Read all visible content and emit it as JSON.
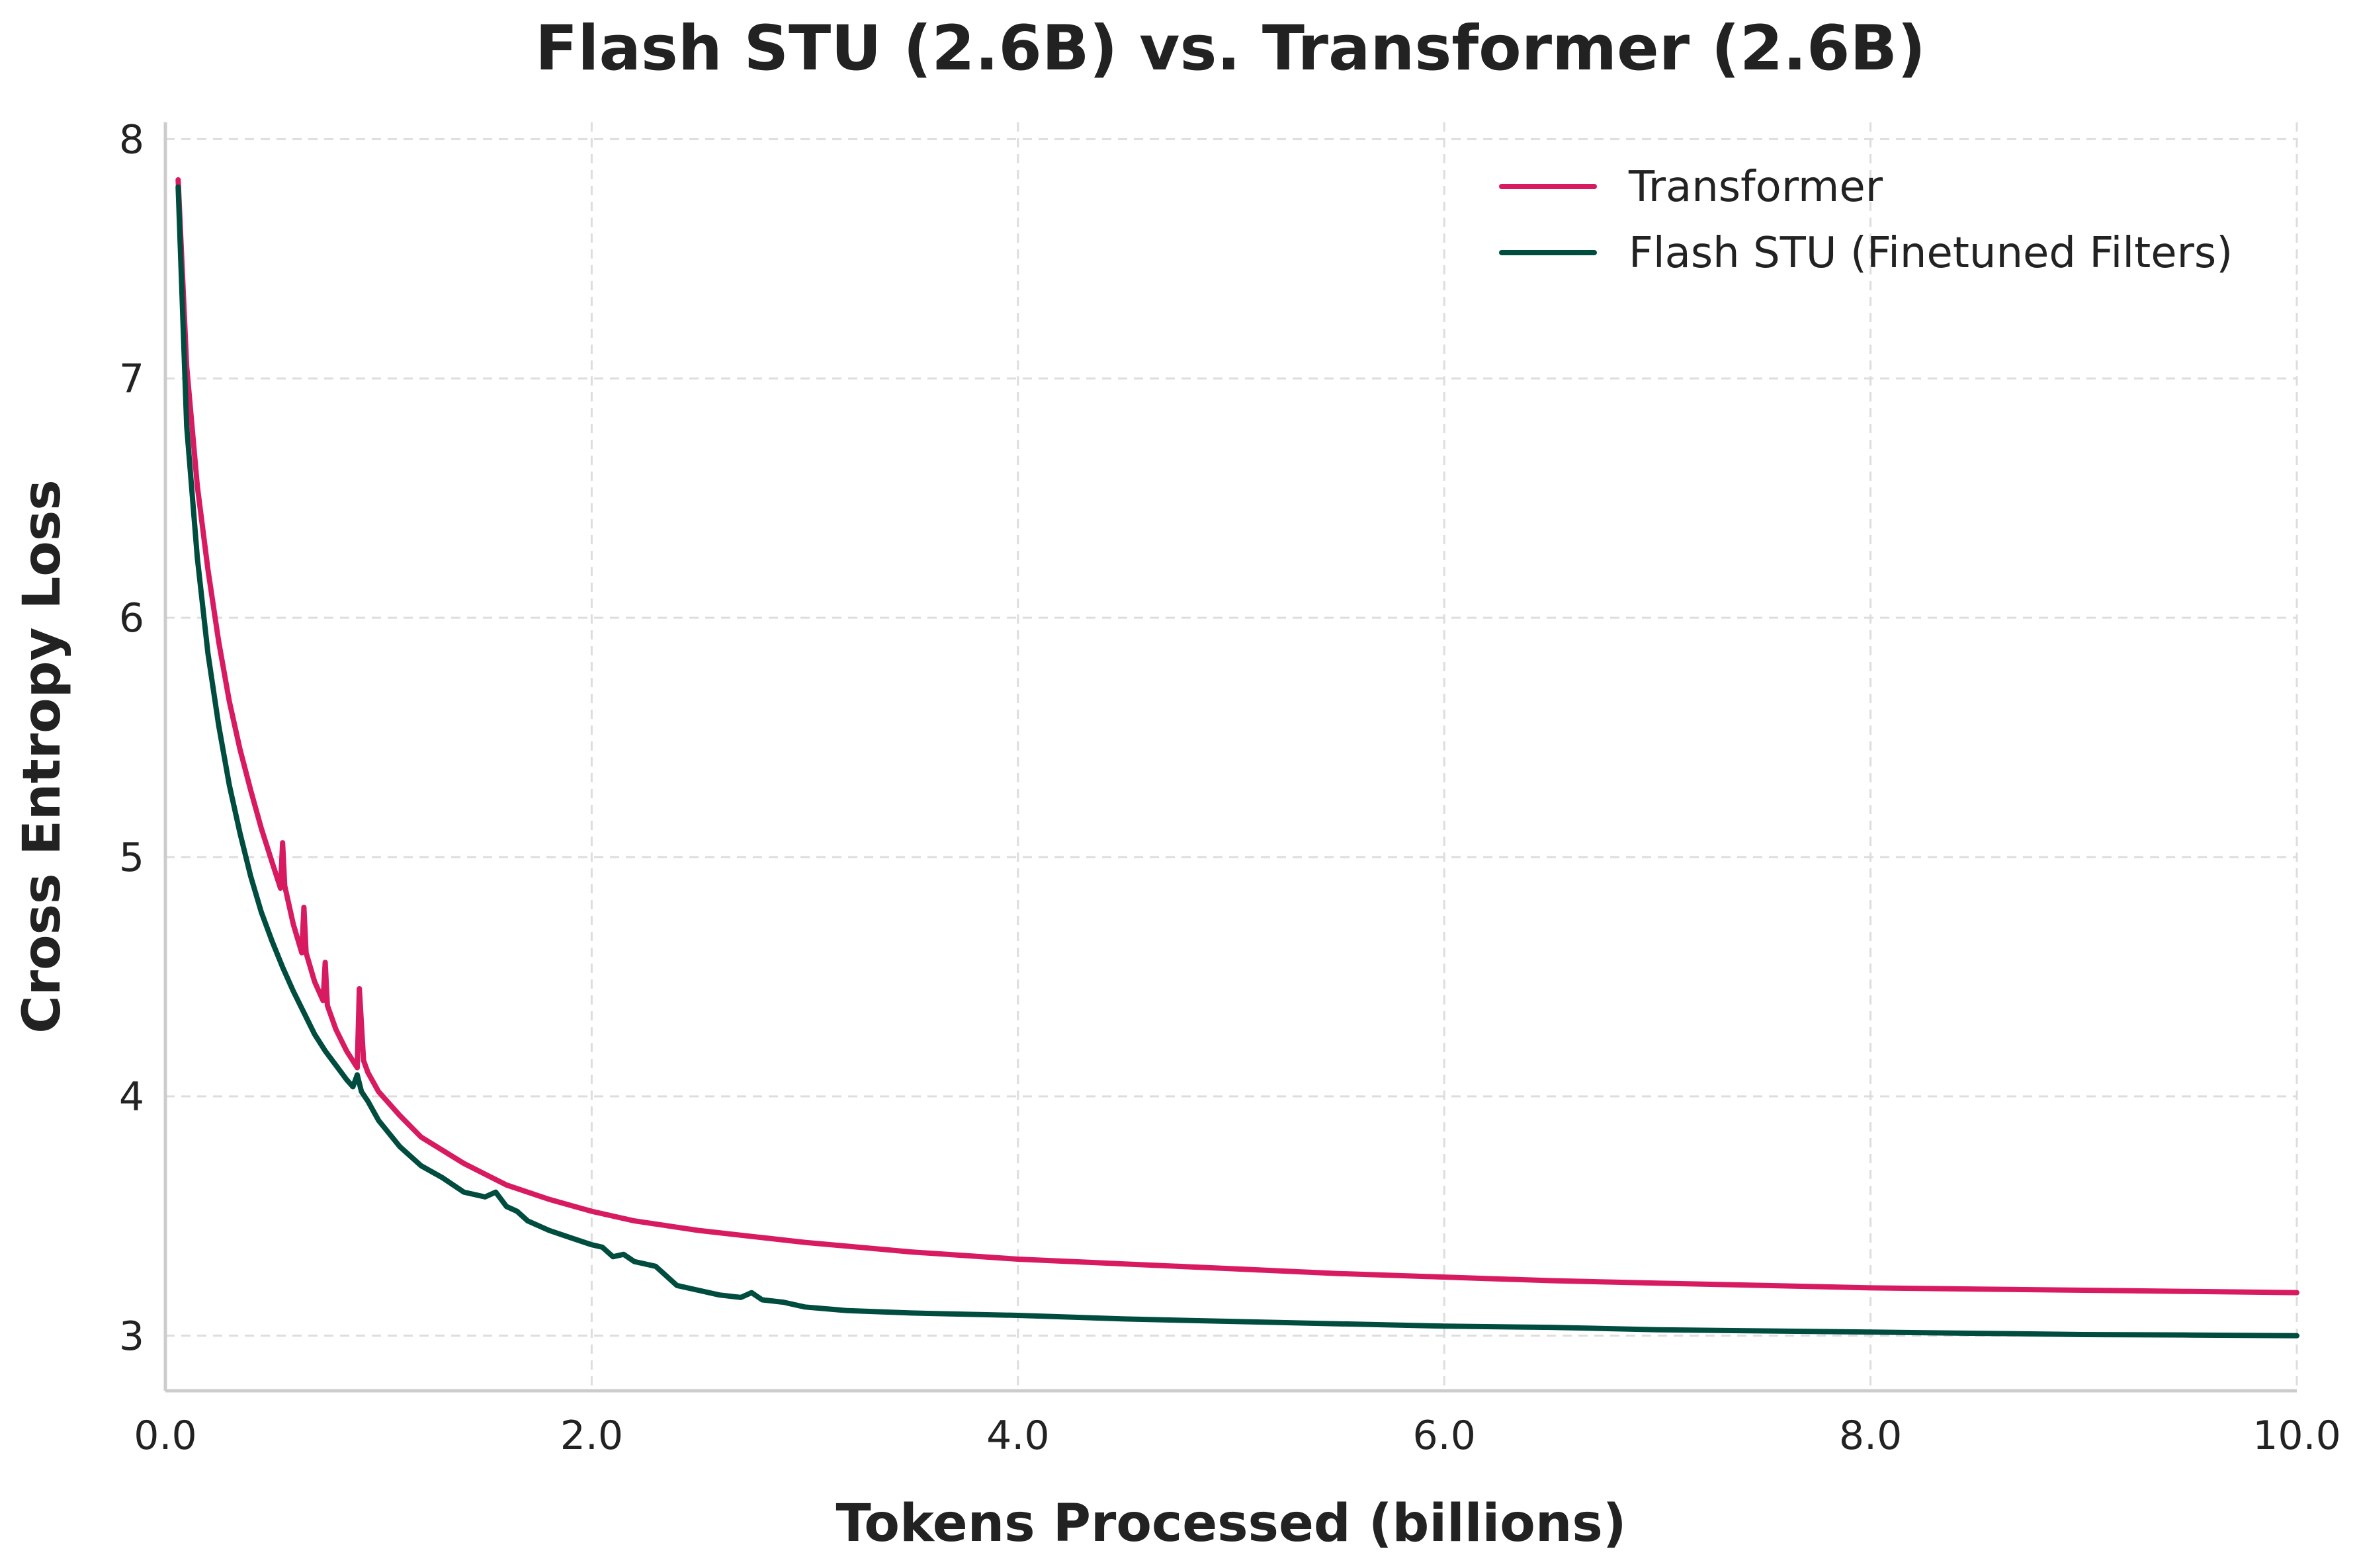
{
  "chart_data": {
    "type": "line",
    "title": "Flash STU (2.6B) vs. Transformer (2.6B)",
    "xlabel": "Tokens Processed (billions)",
    "ylabel": "Cross Entropy Loss",
    "xlim": [
      0,
      10
    ],
    "ylim": [
      2.77,
      8.07
    ],
    "xticks": [
      0,
      2,
      4,
      6,
      8,
      10
    ],
    "xtick_labels": [
      "0.0",
      "2.0",
      "4.0",
      "6.0",
      "8.0",
      "10.0"
    ],
    "yticks": [
      3,
      4,
      5,
      6,
      7,
      8
    ],
    "ytick_labels": [
      "3",
      "4",
      "5",
      "6",
      "7",
      "8"
    ],
    "grid": true,
    "legend_position": "top-right",
    "series": [
      {
        "name": "Transformer",
        "color": "#d81b60",
        "x": [
          0.06,
          0.1,
          0.15,
          0.2,
          0.25,
          0.3,
          0.35,
          0.4,
          0.45,
          0.5,
          0.54,
          0.55,
          0.56,
          0.6,
          0.64,
          0.65,
          0.66,
          0.7,
          0.74,
          0.75,
          0.76,
          0.8,
          0.85,
          0.9,
          0.91,
          0.93,
          0.95,
          1.0,
          1.1,
          1.2,
          1.4,
          1.6,
          1.8,
          2.0,
          2.2,
          2.5,
          2.8,
          3.0,
          3.5,
          4.0,
          4.5,
          5.0,
          5.5,
          6.0,
          6.5,
          7.0,
          7.5,
          8.0,
          8.5,
          9.0,
          9.5,
          10.0
        ],
        "y": [
          7.83,
          7.05,
          6.55,
          6.2,
          5.9,
          5.65,
          5.45,
          5.28,
          5.12,
          4.98,
          4.87,
          5.06,
          4.88,
          4.72,
          4.6,
          4.79,
          4.6,
          4.48,
          4.4,
          4.56,
          4.38,
          4.28,
          4.19,
          4.12,
          4.45,
          4.15,
          4.1,
          4.02,
          3.92,
          3.83,
          3.72,
          3.63,
          3.57,
          3.52,
          3.48,
          3.44,
          3.41,
          3.39,
          3.35,
          3.32,
          3.3,
          3.28,
          3.26,
          3.245,
          3.23,
          3.22,
          3.21,
          3.2,
          3.195,
          3.19,
          3.185,
          3.18
        ]
      },
      {
        "name": "Flash STU (Finetuned Filters)",
        "color": "#004d40",
        "x": [
          0.06,
          0.1,
          0.15,
          0.2,
          0.25,
          0.3,
          0.35,
          0.4,
          0.45,
          0.5,
          0.55,
          0.6,
          0.65,
          0.7,
          0.75,
          0.8,
          0.85,
          0.88,
          0.9,
          0.92,
          0.95,
          1.0,
          1.1,
          1.2,
          1.3,
          1.4,
          1.5,
          1.55,
          1.6,
          1.65,
          1.7,
          1.8,
          1.9,
          2.0,
          2.05,
          2.1,
          2.15,
          2.2,
          2.3,
          2.4,
          2.5,
          2.6,
          2.7,
          2.75,
          2.8,
          2.9,
          3.0,
          3.2,
          3.5,
          4.0,
          4.5,
          5.0,
          5.5,
          6.0,
          6.5,
          7.0,
          7.5,
          8.0,
          8.5,
          9.0,
          9.5,
          10.0
        ],
        "y": [
          7.8,
          6.8,
          6.25,
          5.85,
          5.55,
          5.3,
          5.1,
          4.92,
          4.77,
          4.65,
          4.54,
          4.44,
          4.35,
          4.26,
          4.19,
          4.13,
          4.07,
          4.04,
          4.09,
          4.02,
          3.98,
          3.9,
          3.79,
          3.71,
          3.66,
          3.6,
          3.58,
          3.6,
          3.54,
          3.52,
          3.48,
          3.44,
          3.41,
          3.38,
          3.37,
          3.33,
          3.34,
          3.31,
          3.29,
          3.21,
          3.19,
          3.17,
          3.16,
          3.18,
          3.15,
          3.14,
          3.12,
          3.105,
          3.095,
          3.085,
          3.07,
          3.06,
          3.05,
          3.04,
          3.035,
          3.025,
          3.02,
          3.015,
          3.01,
          3.005,
          3.003,
          3.0
        ]
      }
    ]
  }
}
